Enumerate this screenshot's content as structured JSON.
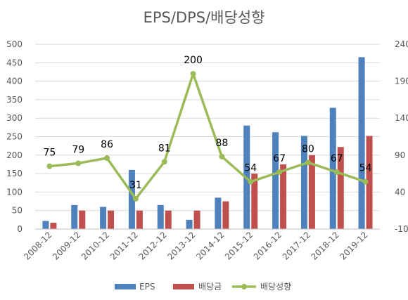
{
  "chart_data": {
    "type": "bar",
    "title": "EPS/DPS/배당성향",
    "categories": [
      "2008-12",
      "2009-12",
      "2010-12",
      "2011-12",
      "2012-12",
      "2013-12",
      "2014-12",
      "2015-12",
      "2016-12",
      "2017-12",
      "2018-12",
      "2019-12"
    ],
    "series": [
      {
        "name": "EPS",
        "type": "bar",
        "axis": "left",
        "color": "#4F81BD",
        "values": [
          22,
          65,
          60,
          160,
          65,
          25,
          85,
          280,
          262,
          252,
          328,
          465
        ]
      },
      {
        "name": "배당금",
        "type": "bar",
        "axis": "left",
        "color": "#C0504D",
        "values": [
          17,
          50,
          50,
          50,
          50,
          50,
          75,
          150,
          175,
          200,
          222,
          252
        ]
      },
      {
        "name": "배당성향",
        "type": "line",
        "axis": "right",
        "color": "#9BBB59",
        "values": [
          75,
          79,
          86,
          31,
          81,
          200,
          88,
          54,
          67,
          80,
          67,
          54
        ],
        "labels": [
          "75",
          "79",
          "86",
          "31",
          "81",
          "200",
          "88",
          "54",
          "67",
          "80",
          "67",
          "54"
        ]
      }
    ],
    "y_left": {
      "min": 0,
      "max": 500,
      "ticks": [
        "0",
        "50",
        "100",
        "150",
        "200",
        "250",
        "300",
        "350",
        "400",
        "450",
        "500"
      ]
    },
    "y_right": {
      "min": -10,
      "max": 240,
      "ticks": [
        "-10",
        "40",
        "90",
        "140",
        "190",
        "240"
      ]
    },
    "grid": true,
    "legend_position": "bottom"
  }
}
